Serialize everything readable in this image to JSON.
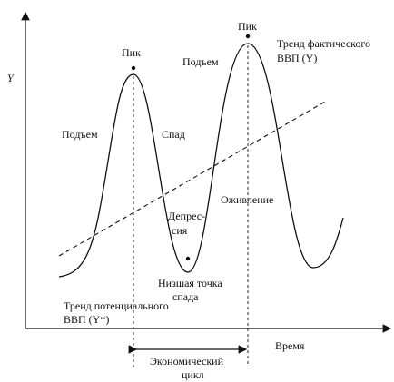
{
  "axes": {
    "y_label": "Y",
    "x_label": "Время"
  },
  "labels": {
    "peak_left": "Пик",
    "peak_right": "Пик",
    "rise_left": "Подъем",
    "rise_right": "Подъем",
    "decline": "Спад",
    "depression": [
      "Депрес-",
      "сия"
    ],
    "recovery": "Оживление",
    "trough": [
      "Низшая точка",
      "спада"
    ],
    "actual_trend": [
      "Тренд фактического",
      "ВВП (Y)"
    ],
    "potential_trend": [
      "Тренд потенциального",
      "ВВП (Y*)"
    ],
    "cycle": [
      "Экономический",
      "цикл"
    ]
  }
}
